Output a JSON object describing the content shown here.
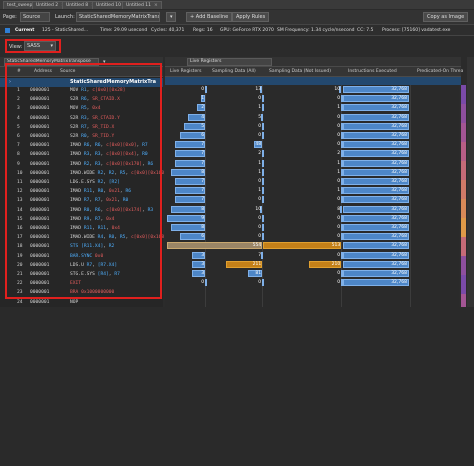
{
  "tabs": [
    {
      "label": "test_sweep"
    },
    {
      "label": "Untitled 2"
    },
    {
      "label": "Untitled 8"
    },
    {
      "label": "Untitled 10"
    },
    {
      "label": "Untitled 11"
    }
  ],
  "toolbar": {
    "page_label": "Page:",
    "page_value": "Source",
    "launch_label": "Launch:",
    "launch_value": "StaticSharedMemoryMatrixTranspose",
    "add_baseline": "Add Baseline",
    "apply_rules": "Apply Rules",
    "copy_as_image": "Copy as Image"
  },
  "info": {
    "current_label": "Current",
    "current_value": "125 - StaticShared...",
    "time": "Time: 29.09 usecond",
    "cycles": "Cycles: 40,371",
    "regs": "Regs: 16",
    "gpu": "GPU: GeForce RTX 2070",
    "sm_freq": "SM Frequency: 1.34 cycle/nsecond",
    "cc": "CC: 7.5",
    "process": "Process: [75160] vadatest.exe"
  },
  "view": {
    "label": "View:",
    "value": "SASS"
  },
  "left_header": {
    "function": "StaticSharedMemoryMatrixTranspose"
  },
  "right_header": {
    "metric": "Live Registers"
  },
  "columns": {
    "hash": "#",
    "address": "Address",
    "source": "Source",
    "live_registers": "Live Registers",
    "sampling_all": "Sampling Data (All)",
    "sampling_not_issued": "Sampling Data (Not Issued)",
    "instructions_executed": "Instructions Executed",
    "predicated_on": "Predicated-On Threa"
  },
  "function_row": "StaticSharedMemoryMatrixTra",
  "rows": [
    {
      "n": "1",
      "addr": "0000001",
      "op": "MOV",
      "args": "R1, c[0x0][0x28]",
      "live": "0",
      "all": "13",
      "ni": "10",
      "exec": "32,768"
    },
    {
      "n": "2",
      "addr": "0000001",
      "op": "S2R",
      "args": "R6, SR_CTAID.X",
      "live": "1",
      "all": "0",
      "ni": "0",
      "exec": "32,768"
    },
    {
      "n": "3",
      "addr": "0000001",
      "op": "MOV",
      "args": "R5, 0x4",
      "live": "2",
      "all": "1",
      "ni": "1",
      "exec": "32,768"
    },
    {
      "n": "4",
      "addr": "0000001",
      "op": "S2R",
      "args": "R3, SR_CTAID.Y",
      "live": "4",
      "all": "5",
      "ni": "0",
      "exec": "32,768"
    },
    {
      "n": "5",
      "addr": "0000001",
      "op": "S2R",
      "args": "R7, SR_TID.X",
      "live": "5",
      "all": "0",
      "ni": "0",
      "exec": "32,768"
    },
    {
      "n": "6",
      "addr": "0000001",
      "op": "S2R",
      "args": "R0, SR_TID.Y",
      "live": "6",
      "all": "0",
      "ni": "0",
      "exec": "32,768"
    },
    {
      "n": "7",
      "addr": "0000001",
      "op": "IMAD",
      "args": "R6, R6, c[0x0][0x0], R7",
      "live": "7",
      "all": "48",
      "ni": "0",
      "exec": "32,768"
    },
    {
      "n": "8",
      "addr": "0000001",
      "op": "IMAD",
      "args": "R3, R3, c[0x0][0x4], R0",
      "live": "7",
      "all": "2",
      "ni": "2",
      "exec": "32,768"
    },
    {
      "n": "9",
      "addr": "0000001",
      "op": "IMAD",
      "args": "R2, R3, c[0x0][0x170], R6",
      "live": "7",
      "all": "1",
      "ni": "1",
      "exec": "32,768"
    },
    {
      "n": "10",
      "addr": "0000001",
      "op": "IMAD.WIDE",
      "args": "R2, R2, R5, c[0x0][0x160]",
      "live": "8",
      "all": "1",
      "ni": "1",
      "exec": "32,768"
    },
    {
      "n": "11",
      "addr": "0000001",
      "op": "LDG.E.SYS",
      "args": "R2, [R2]",
      "live": "7",
      "all": "0",
      "ni": "0",
      "exec": "32,768"
    },
    {
      "n": "12",
      "addr": "0000001",
      "op": "IMAD",
      "args": "R11, R0, 0x21, R6",
      "live": "7",
      "all": "1",
      "ni": "1",
      "exec": "32,768"
    },
    {
      "n": "13",
      "addr": "0000001",
      "op": "IMAD",
      "args": "R7, R7, 0x21, R0",
      "live": "7",
      "all": "0",
      "ni": "0",
      "exec": "32,768"
    },
    {
      "n": "14",
      "addr": "0000001",
      "op": "IMAD",
      "args": "R0, R6, c[0x0][0x174], R3",
      "live": "8",
      "all": "10",
      "ni": "8",
      "exec": "32,768"
    },
    {
      "n": "15",
      "addr": "0000001",
      "op": "IMAD",
      "args": "R9, R7, 0x4",
      "live": "9",
      "all": "0",
      "ni": "0",
      "exec": "32,768"
    },
    {
      "n": "16",
      "addr": "0000001",
      "op": "IMAD",
      "args": "R11, R11, 0x4",
      "live": "8",
      "all": "0",
      "ni": "0",
      "exec": "32,768"
    },
    {
      "n": "17",
      "addr": "0000001",
      "op": "IMAD.WIDE",
      "args": "R4, R0, R5, c[0x0][0x168]",
      "live": "6",
      "all": "0",
      "ni": "0",
      "exec": "32,768"
    },
    {
      "n": "18",
      "addr": "0000001",
      "op": "STS",
      "args": "[R11.X4], R2",
      "live": "4",
      "all": "554",
      "ni": "513",
      "exec": "32,768"
    },
    {
      "n": "19",
      "addr": "0000001",
      "op": "BAR.SYNC",
      "args": "0x0",
      "live": "3",
      "all": "7",
      "ni": "0",
      "exec": "32,768"
    },
    {
      "n": "20",
      "addr": "0000001",
      "op": "LDS.U",
      "args": "R7, [R7.X4]",
      "live": "3",
      "all": "211",
      "ni": "210",
      "exec": "32,768"
    },
    {
      "n": "21",
      "addr": "0000001",
      "op": "STG.E.SYS",
      "args": "[R4], R7",
      "live": "3",
      "all": "81",
      "ni": "0",
      "exec": "32,768"
    },
    {
      "n": "22",
      "addr": "0000001",
      "op": "EXIT",
      "args": "",
      "live": "0",
      "all": "0",
      "ni": "0",
      "exec": "32,768"
    },
    {
      "n": "23",
      "addr": "0000001",
      "op": "BRA",
      "args": "0x1000000000",
      "live": "",
      "all": "",
      "ni": "",
      "exec": ""
    },
    {
      "n": "24",
      "addr": "0000001",
      "op": "NOP",
      "args": "",
      "live": "",
      "all": "",
      "ni": "",
      "exec": ""
    }
  ],
  "colors": {
    "highlight_red": "#e0201e",
    "bar_blue": "#4d86c7",
    "bar_orange": "#c48018",
    "bar_tan": "#9a8566"
  }
}
